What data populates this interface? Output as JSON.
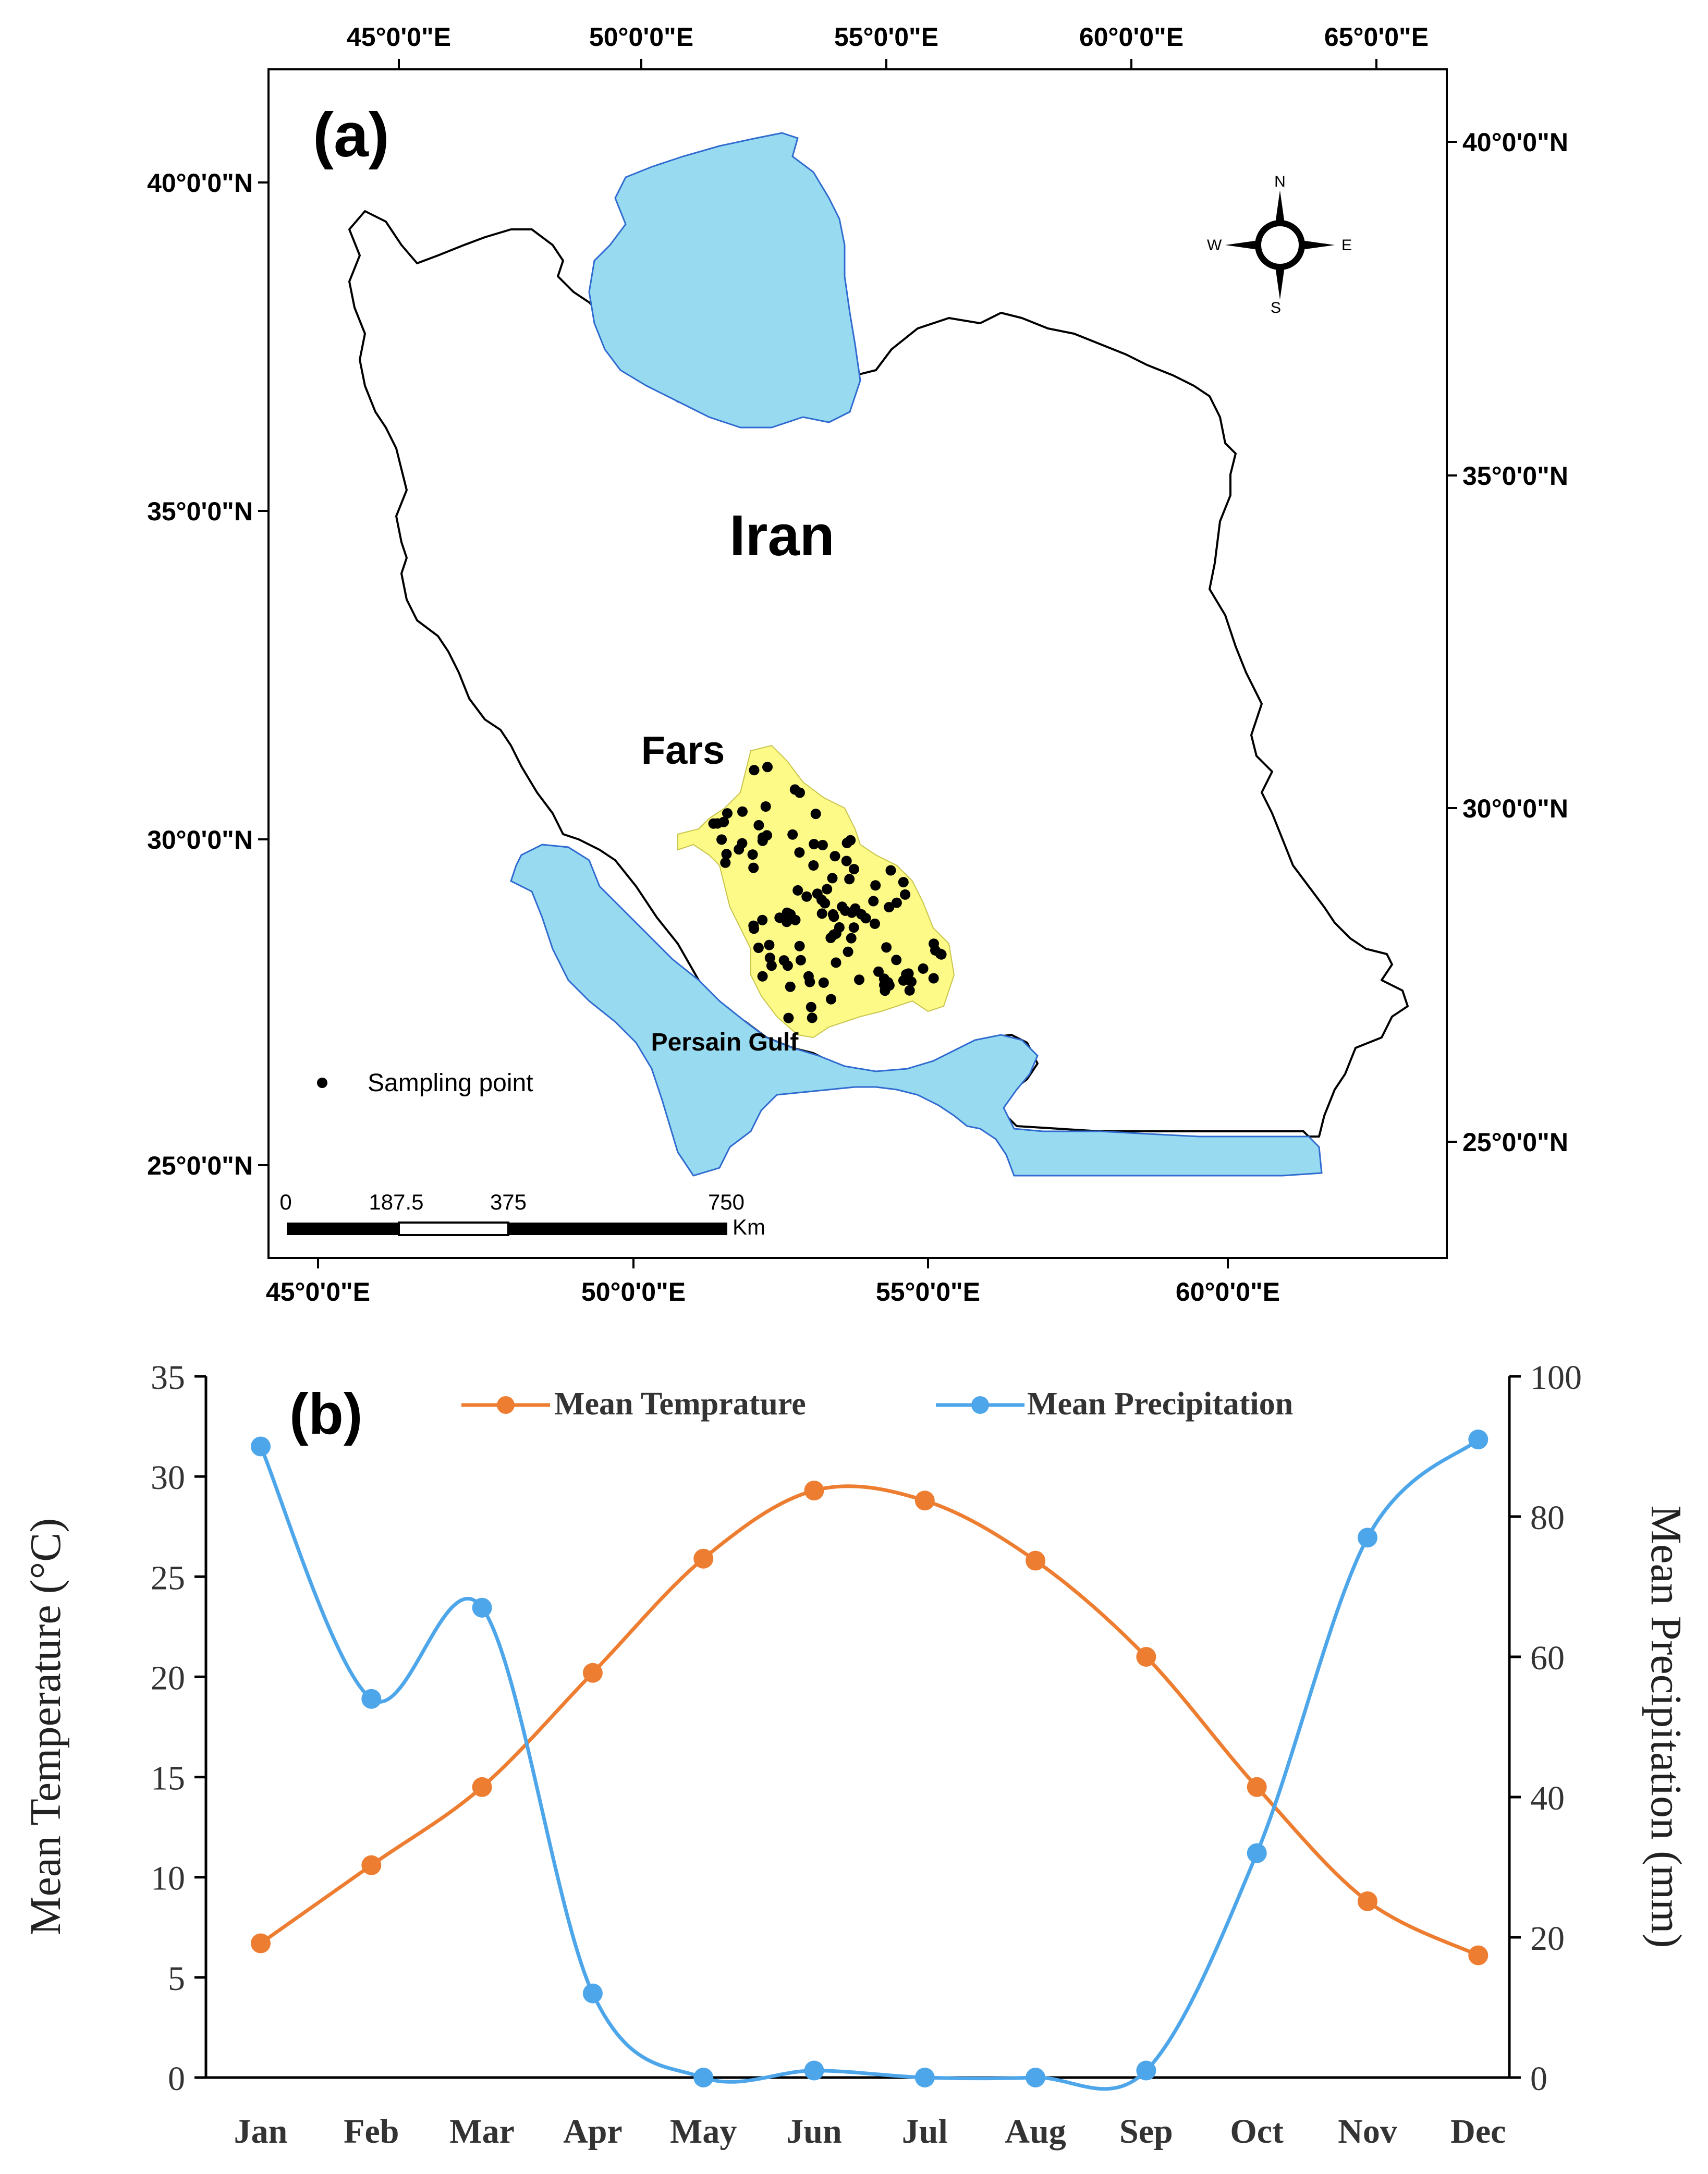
{
  "panel_a": {
    "panel_label": "(a)",
    "top_lon_ticks": [
      "45°0'0\"E",
      "50°0'0\"E",
      "55°0'0\"E",
      "60°0'0\"E",
      "65°0'0\"E"
    ],
    "bottom_lon_ticks": [
      "45°0'0\"E",
      "50°0'0\"E",
      "55°0'0\"E",
      "60°0'0\"E"
    ],
    "left_lat_ticks": [
      "40°0'0\"N",
      "35°0'0\"N",
      "30°0'0\"N",
      "25°0'0\"N"
    ],
    "right_lat_ticks": [
      "40°0'0\"N",
      "35°0'0\"N",
      "30°0'0\"N",
      "25°0'0\"N"
    ],
    "country_label": "Iran",
    "province_label": "Fars",
    "gulf_label": "Persain Gulf",
    "legend_label": "Sampling point",
    "scalebar": {
      "ticks": [
        "0",
        "187.5",
        "375",
        "750"
      ],
      "unit": "Km"
    },
    "compass": {
      "n": "N",
      "s": "S",
      "e": "E",
      "w": "W"
    },
    "colors": {
      "water": "#98dbf0",
      "province": "#fdfa88",
      "border": "#000000",
      "points": "#000000"
    },
    "sampling_point_count": 110
  },
  "panel_b": {
    "panel_label": "(b)",
    "chart_data": {
      "type": "line",
      "categories": [
        "Jan",
        "Feb",
        "Mar",
        "Apr",
        "May",
        "Jun",
        "Jul",
        "Aug",
        "Sep",
        "Oct",
        "Nov",
        "Dec"
      ],
      "series": [
        {
          "name": "Mean Temprature",
          "axis": "left",
          "color": "#ed7d31",
          "values": [
            6.7,
            10.6,
            14.5,
            20.2,
            25.9,
            29.3,
            28.8,
            25.8,
            21.0,
            14.5,
            8.8,
            6.1
          ]
        },
        {
          "name": "Mean Precipitation",
          "axis": "right",
          "color": "#4ea6ea",
          "values": [
            90,
            54,
            67,
            12,
            0,
            1,
            0,
            0,
            1,
            32,
            77,
            91
          ]
        }
      ],
      "ylabel": "Mean Temperature (°C)",
      "ylabel_right": "Mean Precipitation (mm)",
      "ylim": [
        0,
        35
      ],
      "ylim_right": [
        0,
        100
      ],
      "yticks": [
        "0",
        "5",
        "10",
        "15",
        "20",
        "25",
        "30",
        "35"
      ],
      "yticks_right": [
        "0",
        "20",
        "40",
        "60",
        "80",
        "100"
      ],
      "grid": false,
      "legend_position": "top"
    }
  }
}
